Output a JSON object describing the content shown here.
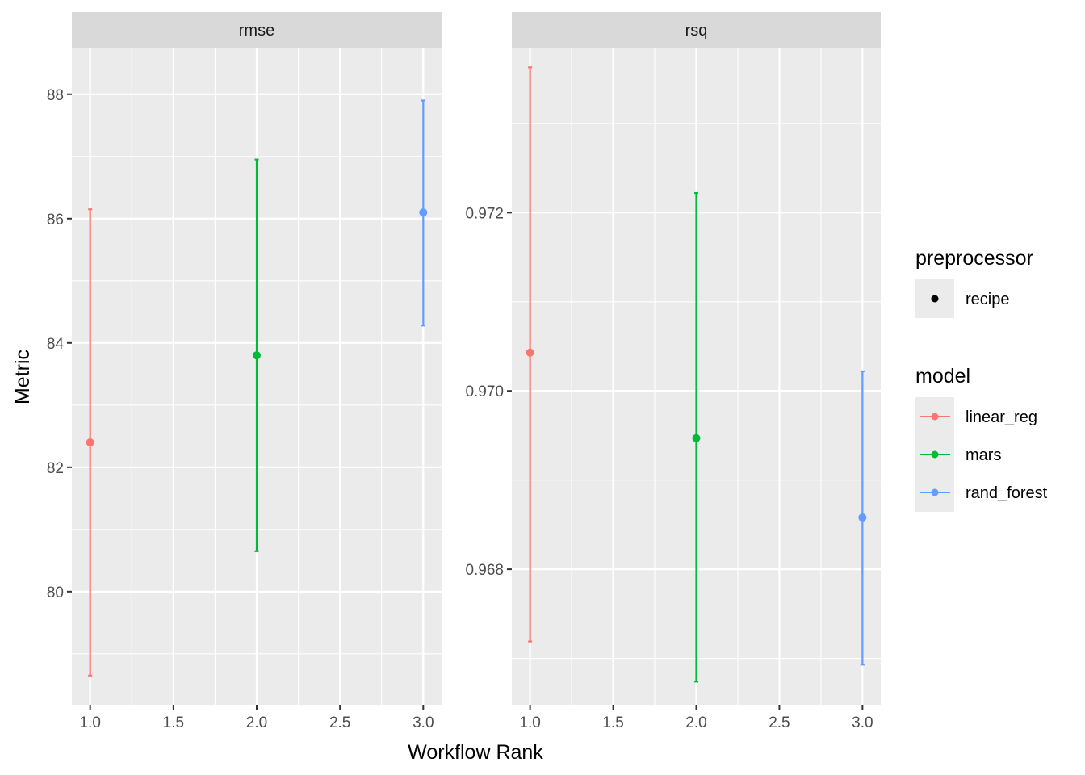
{
  "chart_data": {
    "type": "scatter",
    "xlabel": "Workflow Rank",
    "ylabel": "Metric",
    "x_ticks": [
      "1.0",
      "1.5",
      "2.0",
      "2.5",
      "3.0"
    ],
    "xlim": [
      0.89,
      3.11
    ],
    "grid": true,
    "legend_position": "right",
    "colors": {
      "linear_reg": "#F8766D",
      "mars": "#00BA38",
      "rand_forest": "#619CFF",
      "recipe": "#000000"
    },
    "legends": [
      {
        "title": "preprocessor",
        "entries": [
          {
            "label": "recipe",
            "key": "point"
          }
        ]
      },
      {
        "title": "model",
        "entries": [
          {
            "label": "linear_reg",
            "key": "line-point"
          },
          {
            "label": "mars",
            "key": "line-point"
          },
          {
            "label": "rand_forest",
            "key": "line-point"
          }
        ]
      }
    ],
    "facets": [
      {
        "strip": "rmse",
        "ylim": [
          78.18,
          88.75
        ],
        "y_ticks": [
          "80",
          "82",
          "84",
          "86",
          "88"
        ],
        "y_tick_values": [
          80,
          82,
          84,
          86,
          88
        ],
        "points": [
          {
            "x": 1,
            "y": 82.4,
            "lower": 78.65,
            "upper": 86.15,
            "model": "linear_reg",
            "preprocessor": "recipe"
          },
          {
            "x": 2,
            "y": 83.8,
            "lower": 80.65,
            "upper": 86.95,
            "model": "mars",
            "preprocessor": "recipe"
          },
          {
            "x": 3,
            "y": 86.1,
            "lower": 84.28,
            "upper": 87.9,
            "model": "rand_forest",
            "preprocessor": "recipe"
          }
        ]
      },
      {
        "strip": "rsq",
        "ylim": [
          0.96648,
          0.97385
        ],
        "y_ticks": [
          "0.968",
          "0.970",
          "0.972"
        ],
        "y_tick_values": [
          0.968,
          0.97,
          0.972
        ],
        "points": [
          {
            "x": 1,
            "y": 0.97043,
            "lower": 0.96719,
            "upper": 0.97363,
            "model": "linear_reg",
            "preprocessor": "recipe"
          },
          {
            "x": 2,
            "y": 0.96947,
            "lower": 0.96674,
            "upper": 0.97222,
            "model": "mars",
            "preprocessor": "recipe"
          },
          {
            "x": 3,
            "y": 0.96858,
            "lower": 0.96693,
            "upper": 0.97022,
            "model": "rand_forest",
            "preprocessor": "recipe"
          }
        ]
      }
    ]
  }
}
